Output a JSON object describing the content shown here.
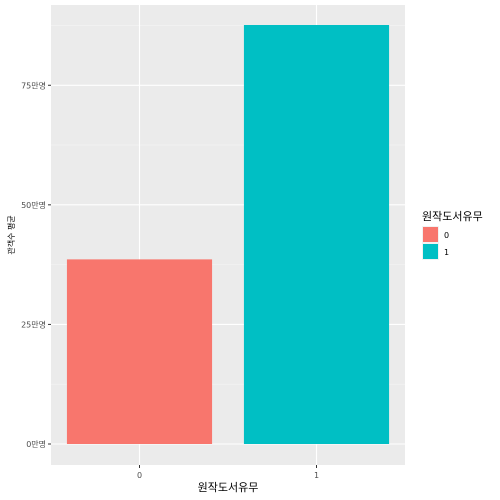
{
  "chart_data": {
    "type": "bar",
    "categories": [
      "0",
      "1"
    ],
    "values": [
      38.6,
      87.6
    ],
    "colors": [
      "#F8766D",
      "#00BFC4"
    ],
    "xlabel": "원작도서유무",
    "ylabel": "관객수 평균",
    "ylim": [
      0,
      91.8
    ],
    "y_ticks": [
      0,
      25,
      50,
      75
    ],
    "y_tick_labels": [
      "0만명",
      "25만명",
      "50만명",
      "75만명"
    ],
    "x_tick_labels": [
      "0",
      "1"
    ],
    "grid": true,
    "legend": {
      "title": "원작도서유무",
      "placement": "right",
      "entries": [
        {
          "label": "0",
          "color": "#F8766D"
        },
        {
          "label": "1",
          "color": "#00BFC4"
        }
      ]
    }
  }
}
